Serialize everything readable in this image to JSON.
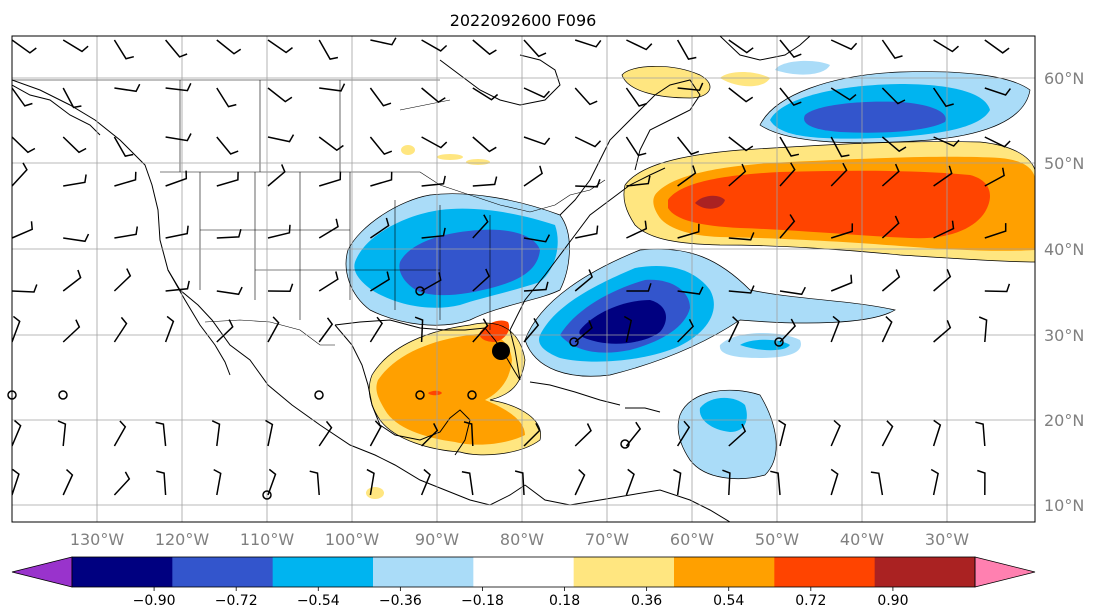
{
  "title": "2022092600 F096",
  "lon_ticks": [
    "130°W",
    "120°W",
    "110°W",
    "100°W",
    "90°W",
    "80°W",
    "70°W",
    "60°W",
    "50°W",
    "40°W",
    "30°W"
  ],
  "lat_ticks": [
    "60°N",
    "50°N",
    "40°N",
    "30°N",
    "20°N",
    "10°N"
  ],
  "colorbar": {
    "levels": [
      "−0.90",
      "−0.72",
      "−0.54",
      "−0.36",
      "−0.18",
      "0.18",
      "0.36",
      "0.54",
      "0.72",
      "0.90"
    ],
    "under_color": "#9933cc",
    "colors": [
      "#000080",
      "#3355cc",
      "#00b4f0",
      "#aadcf8",
      "#ffffff",
      "#ffe680",
      "#ffa000",
      "#ff4400",
      "#aa2222"
    ],
    "over_color": "#ff80b0"
  },
  "storm_marker": {
    "color": "#000000"
  },
  "map": {
    "lon_range": [
      -138,
      -17
    ],
    "lat_range": [
      8,
      65
    ],
    "grid_color": "#a0a0a0"
  }
}
